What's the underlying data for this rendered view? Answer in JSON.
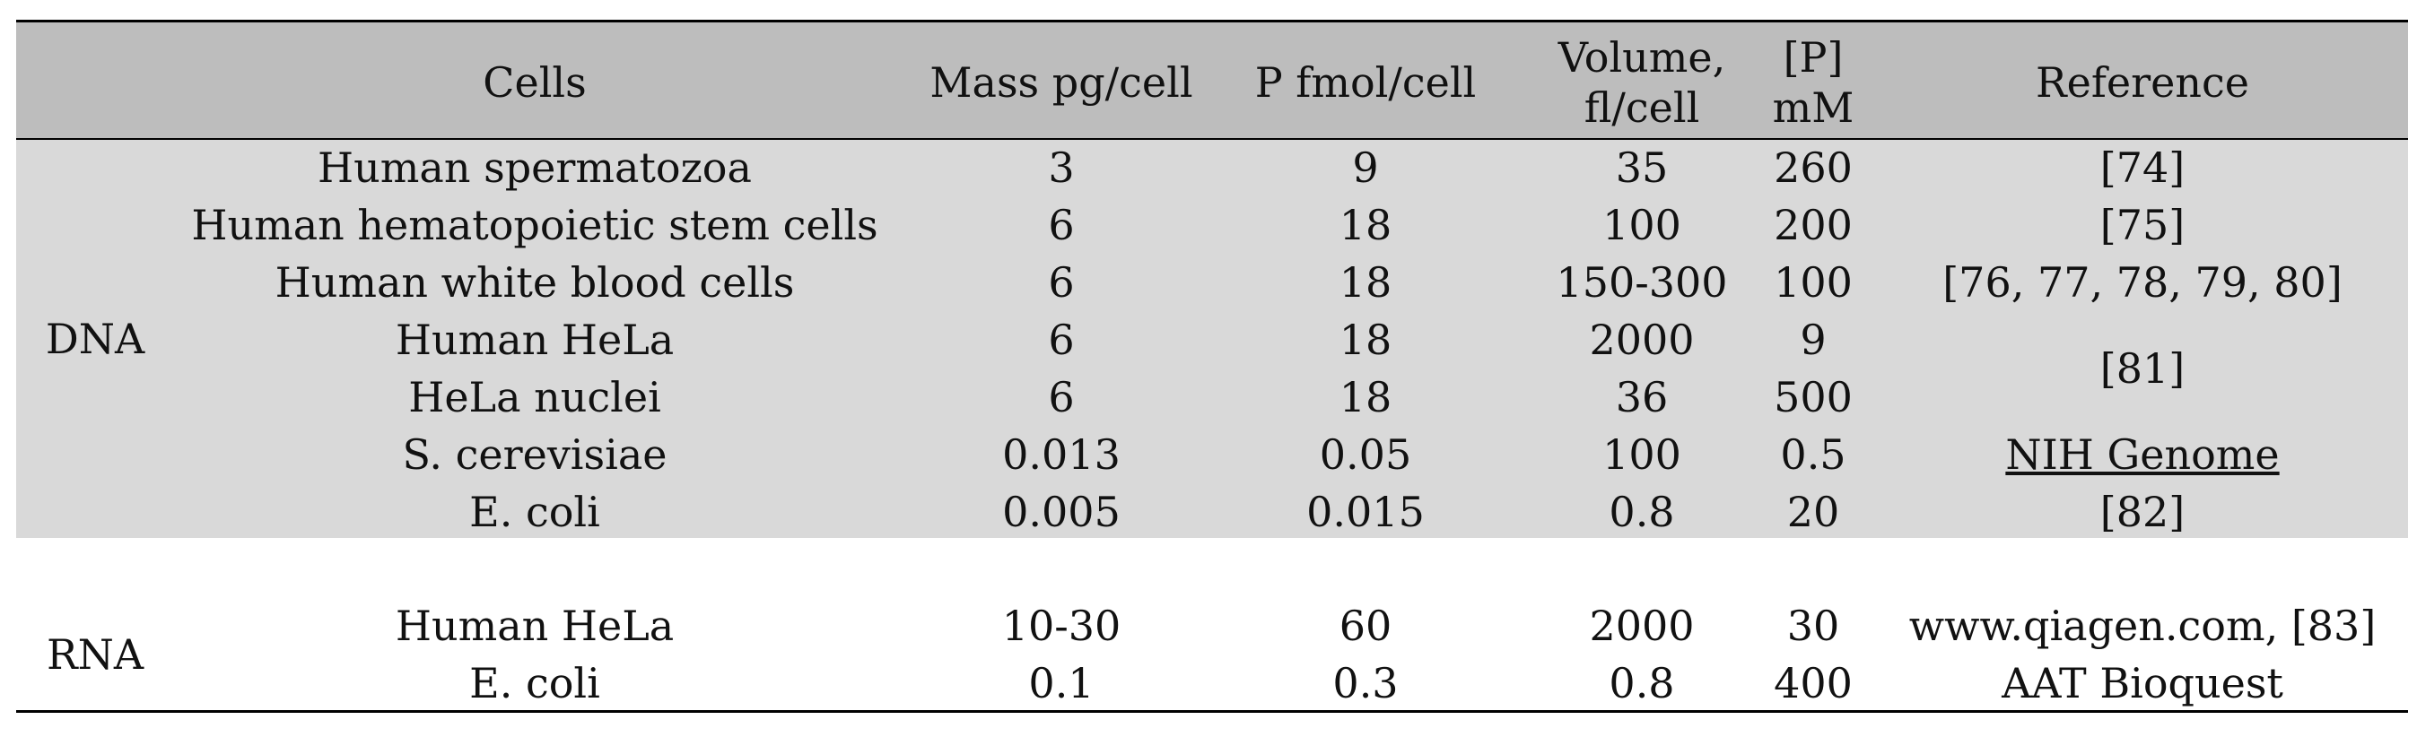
{
  "headers": {
    "group": "",
    "cells": "Cells",
    "mass": "Mass pg/cell",
    "p": "P fmol/cell",
    "volume": "Volume, fl/cell",
    "conc": "[P] mM",
    "reference": "Reference"
  },
  "dna": {
    "label": "DNA",
    "rows": [
      {
        "cells": "Human spermatozoa",
        "mass": "3",
        "p": "9",
        "volume": "35",
        "conc": "260",
        "reference": "[74]"
      },
      {
        "cells": "Human hematopoietic stem cells",
        "mass": "6",
        "p": "18",
        "volume": "100",
        "conc": "200",
        "reference": "[75]"
      },
      {
        "cells": "Human white blood cells",
        "mass": "6",
        "p": "18",
        "volume": "150-300",
        "conc": "100",
        "reference": "[76, 77, 78, 79, 80]"
      },
      {
        "cells": "Human HeLa",
        "mass": "6",
        "p": "18",
        "volume": "2000",
        "conc": "9",
        "reference": "[81]"
      },
      {
        "cells": "HeLa nuclei",
        "mass": "6",
        "p": "18",
        "volume": "36",
        "conc": "500",
        "reference": ""
      },
      {
        "cells": "S. cerevisiae",
        "mass": "0.013",
        "p": "0.05",
        "volume": "100",
        "conc": "0.5",
        "reference": "NIH Genome"
      },
      {
        "cells": "E. coli",
        "mass": "0.005",
        "p": "0.015",
        "volume": "0.8",
        "conc": "20",
        "reference": "[82]"
      }
    ]
  },
  "rna": {
    "label": "RNA",
    "rows": [
      {
        "cells": "Human HeLa",
        "mass": "10-30",
        "p": "60",
        "volume": "2000",
        "conc": "30",
        "reference": "www.qiagen.com, [83]"
      },
      {
        "cells": "E. coli",
        "mass": "0.1",
        "p": "0.3",
        "volume": "0.8",
        "conc": "400",
        "reference": "AAT Bioquest"
      }
    ]
  }
}
